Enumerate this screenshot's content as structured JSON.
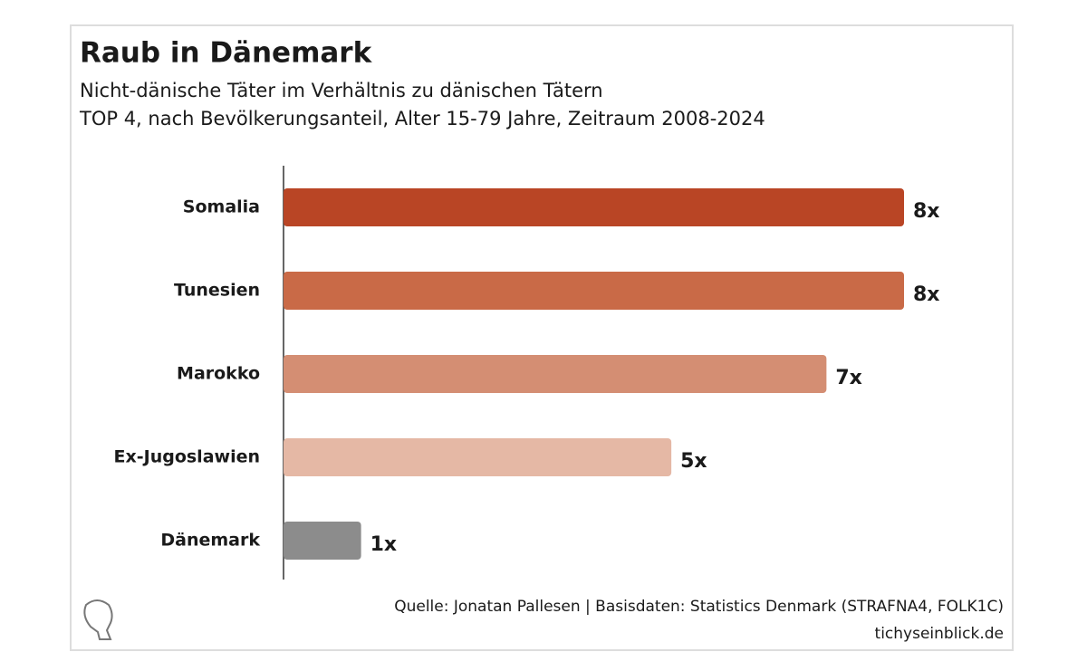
{
  "chart_data": {
    "type": "bar",
    "orientation": "horizontal",
    "title": "Raub in Dänemark",
    "subtitle": [
      "Nicht-dänische Täter im Verhältnis zu dänischen Tätern",
      "TOP 4, nach Bevölkerungsanteil, Alter 15-79 Jahre, Zeitraum 2008-2024"
    ],
    "categories": [
      "Somalia",
      "Tunesien",
      "Marokko",
      "Ex-Jugoslawien",
      "Dänemark"
    ],
    "values": [
      8,
      8,
      7,
      5,
      1
    ],
    "value_labels": [
      "8x",
      "8x",
      "7x",
      "5x",
      "1x"
    ],
    "colors": [
      "#b94525",
      "#c96a47",
      "#d48e73",
      "#e5b8a5",
      "#8c8c8c"
    ],
    "source": "Quelle: Jonatan Pallesen | Basisdaten: Statistics Denmark (STRAFNA4, FOLK1C)",
    "site": "tichyseinblick.de"
  }
}
